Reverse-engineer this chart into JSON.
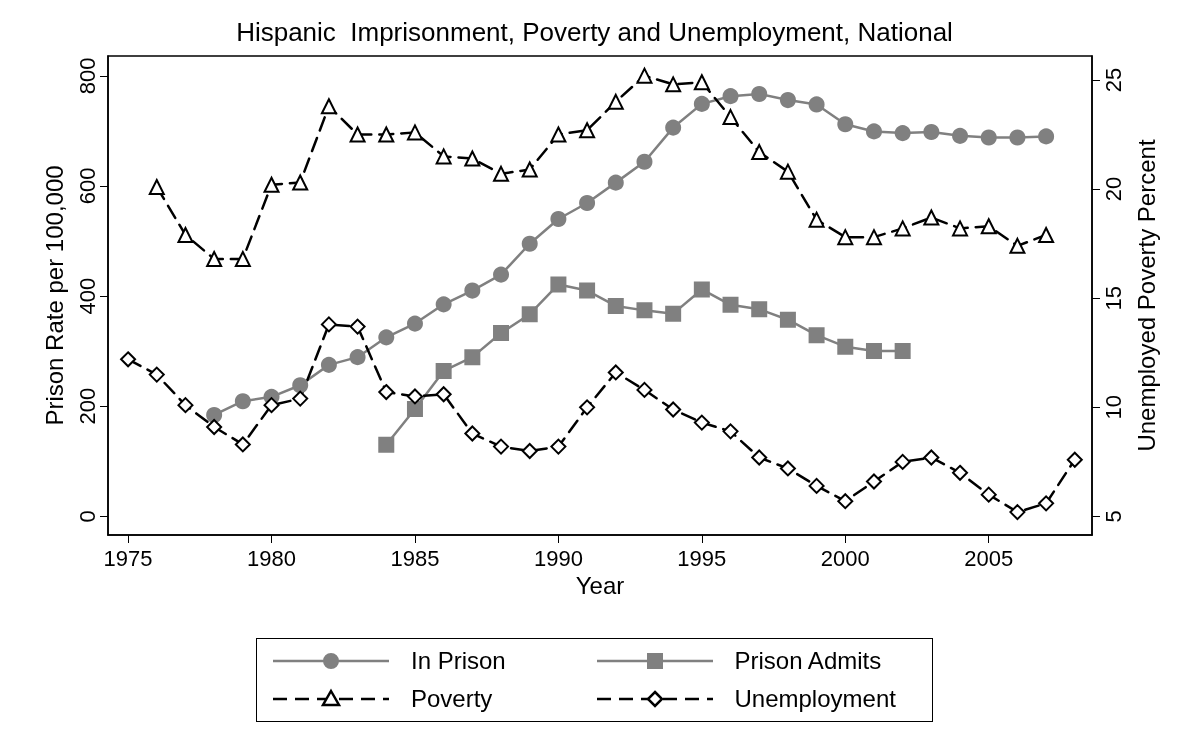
{
  "chart_data": {
    "type": "line",
    "title": "Hispanic  Imprisonment, Poverty and Unemployment, National",
    "xlabel": "Year",
    "ylabel": "Prison Rate per 100,000",
    "y2label": "Unemployed Poverty Percent",
    "xlim": [
      1974.3,
      2008.6
    ],
    "xticks": [
      1975,
      1980,
      1985,
      1990,
      1995,
      2000,
      2005
    ],
    "ylim": [
      -34,
      836
    ],
    "yticks": [
      0,
      200,
      400,
      600,
      800
    ],
    "y2lim": [
      4.15,
      26.1
    ],
    "y2ticks": [
      5,
      10,
      15,
      20,
      25
    ],
    "grid": false,
    "legend": "bottom",
    "series": [
      {
        "name": "In Prison",
        "color": "#808080",
        "marker": "circle",
        "line_style": "solid",
        "x": [
          1978,
          1979,
          1980,
          1981,
          1982,
          1983,
          1984,
          1985,
          1986,
          1987,
          1988,
          1989,
          1990,
          1991,
          1992,
          1993,
          1994,
          1995,
          1996,
          1997,
          1998,
          1999,
          2000,
          2001,
          2002,
          2003,
          2004,
          2005,
          2006,
          2007
        ],
        "values": [
          184,
          209,
          217,
          238,
          275,
          289,
          325,
          350,
          385,
          410,
          439,
          495,
          540,
          569,
          606,
          644,
          706,
          749,
          763,
          767,
          756,
          748,
          712,
          699,
          696,
          698,
          691,
          688,
          688,
          690
        ]
      },
      {
        "name": "Prison Admits",
        "color": "#808080",
        "marker": "square",
        "line_style": "solid",
        "x": [
          1984,
          1985,
          1986,
          1987,
          1988,
          1989,
          1990,
          1991,
          1992,
          1993,
          1994,
          1995,
          1996,
          1997,
          1998,
          1999,
          2000,
          2001,
          2002
        ],
        "values": [
          130,
          195,
          264,
          289,
          333,
          367,
          421,
          410,
          382,
          374,
          368,
          412,
          384,
          376,
          357,
          329,
          308,
          300,
          300
        ]
      },
      {
        "name": "Poverty",
        "color": "#000000",
        "marker": "triangle",
        "line_style": "dashed",
        "axis": "y2",
        "x": [
          1976,
          1977,
          1978,
          1979,
          1980,
          1981,
          1982,
          1983,
          1984,
          1985,
          1986,
          1987,
          1988,
          1989,
          1990,
          1991,
          1992,
          1993,
          1994,
          1995,
          1996,
          1997,
          1998,
          1999,
          2000,
          2001,
          2002,
          2003,
          2004,
          2005,
          2006,
          2007
        ],
        "values": [
          20.1,
          17.9,
          16.8,
          16.8,
          20.2,
          20.3,
          23.8,
          22.5,
          22.5,
          22.6,
          21.5,
          21.4,
          20.7,
          20.9,
          22.5,
          22.7,
          24.0,
          25.2,
          24.8,
          24.9,
          23.3,
          21.7,
          20.8,
          18.6,
          17.8,
          17.8,
          18.2,
          18.7,
          18.2,
          18.3,
          17.4,
          17.9
        ]
      },
      {
        "name": "Unemployment",
        "color": "#000000",
        "marker": "diamond",
        "line_style": "dashed",
        "axis": "y2",
        "x": [
          1975,
          1976,
          1977,
          1978,
          1979,
          1980,
          1981,
          1982,
          1983,
          1984,
          1985,
          1986,
          1987,
          1988,
          1989,
          1990,
          1991,
          1992,
          1993,
          1994,
          1995,
          1996,
          1997,
          1998,
          1999,
          2000,
          2001,
          2002,
          2003,
          2004,
          2005,
          2006,
          2007,
          2008
        ],
        "values": [
          12.2,
          11.5,
          10.1,
          9.1,
          8.3,
          10.1,
          10.4,
          13.8,
          13.7,
          10.7,
          10.5,
          10.6,
          8.8,
          8.2,
          8.0,
          8.2,
          10.0,
          11.6,
          10.8,
          9.9,
          9.3,
          8.9,
          7.7,
          7.2,
          6.4,
          5.7,
          6.6,
          7.5,
          7.7,
          7.0,
          6.0,
          5.2,
          5.6,
          7.6
        ]
      }
    ]
  }
}
